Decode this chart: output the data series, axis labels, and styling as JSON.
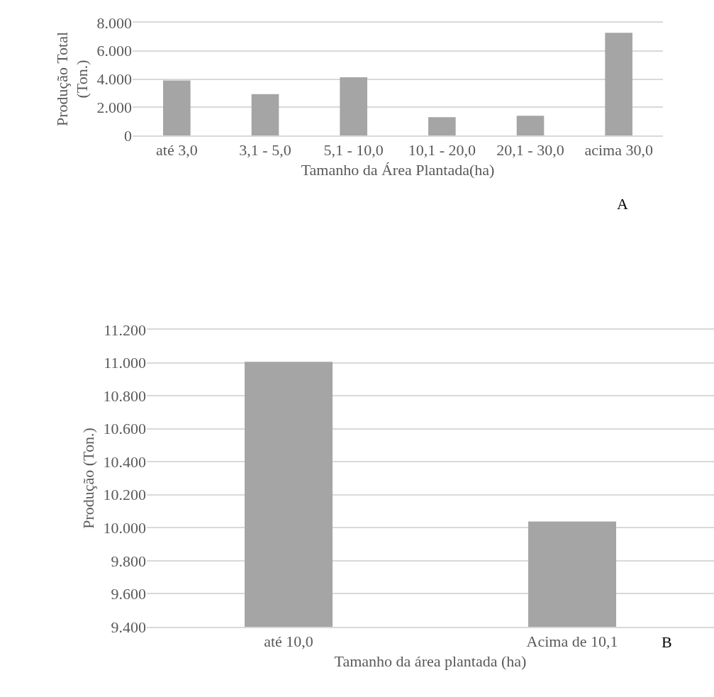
{
  "chart_data": [
    {
      "type": "bar",
      "xlabel": "Tamanho da Área Plantada(ha)",
      "ylabel": "Produção Total (Ton.)",
      "annotations": [
        "A"
      ],
      "categories": [
        "até 3,0",
        "3,1 - 5,0",
        "5,1 - 10,0",
        "10,1 - 20,0",
        "20,1 - 30,0",
        "acima 30,0"
      ],
      "values": [
        3900,
        2930,
        4130,
        1290,
        1390,
        7280
      ],
      "color": "#a5a5a5",
      "ylim": [
        0,
        8000
      ],
      "yticks": [
        0,
        {
          "value": 2000,
          "label": "2.000"
        },
        {
          "value": 4000,
          "label": "4.000"
        },
        {
          "value": 6000,
          "label": "6.000"
        },
        {
          "value": 8000,
          "label": "8.000"
        }
      ],
      "grid": "y"
    },
    {
      "type": "bar",
      "xlabel": "Tamanho da área plantada (ha)",
      "ylabel": "Produção (Ton.)",
      "annotations": [
        "B"
      ],
      "categories": [
        "até 10,0",
        "Acima de 10,1"
      ],
      "values": [
        11006,
        10038
      ],
      "color": "#a5a5a5",
      "ylim": [
        9400,
        11200
      ],
      "yticks": [
        {
          "value": 9400,
          "label": "9.400"
        },
        {
          "value": 9600,
          "label": "9.600"
        },
        {
          "value": 9800,
          "label": "9.800"
        },
        {
          "value": 10000,
          "label": "10.000"
        },
        {
          "value": 10200,
          "label": "10.200"
        },
        {
          "value": 10400,
          "label": "10.400"
        },
        {
          "value": 10600,
          "label": "10.600"
        },
        {
          "value": 10800,
          "label": "10.800"
        },
        {
          "value": 11000,
          "label": "11.000"
        },
        {
          "value": 11200,
          "label": "11.200"
        }
      ],
      "grid": "y"
    }
  ]
}
